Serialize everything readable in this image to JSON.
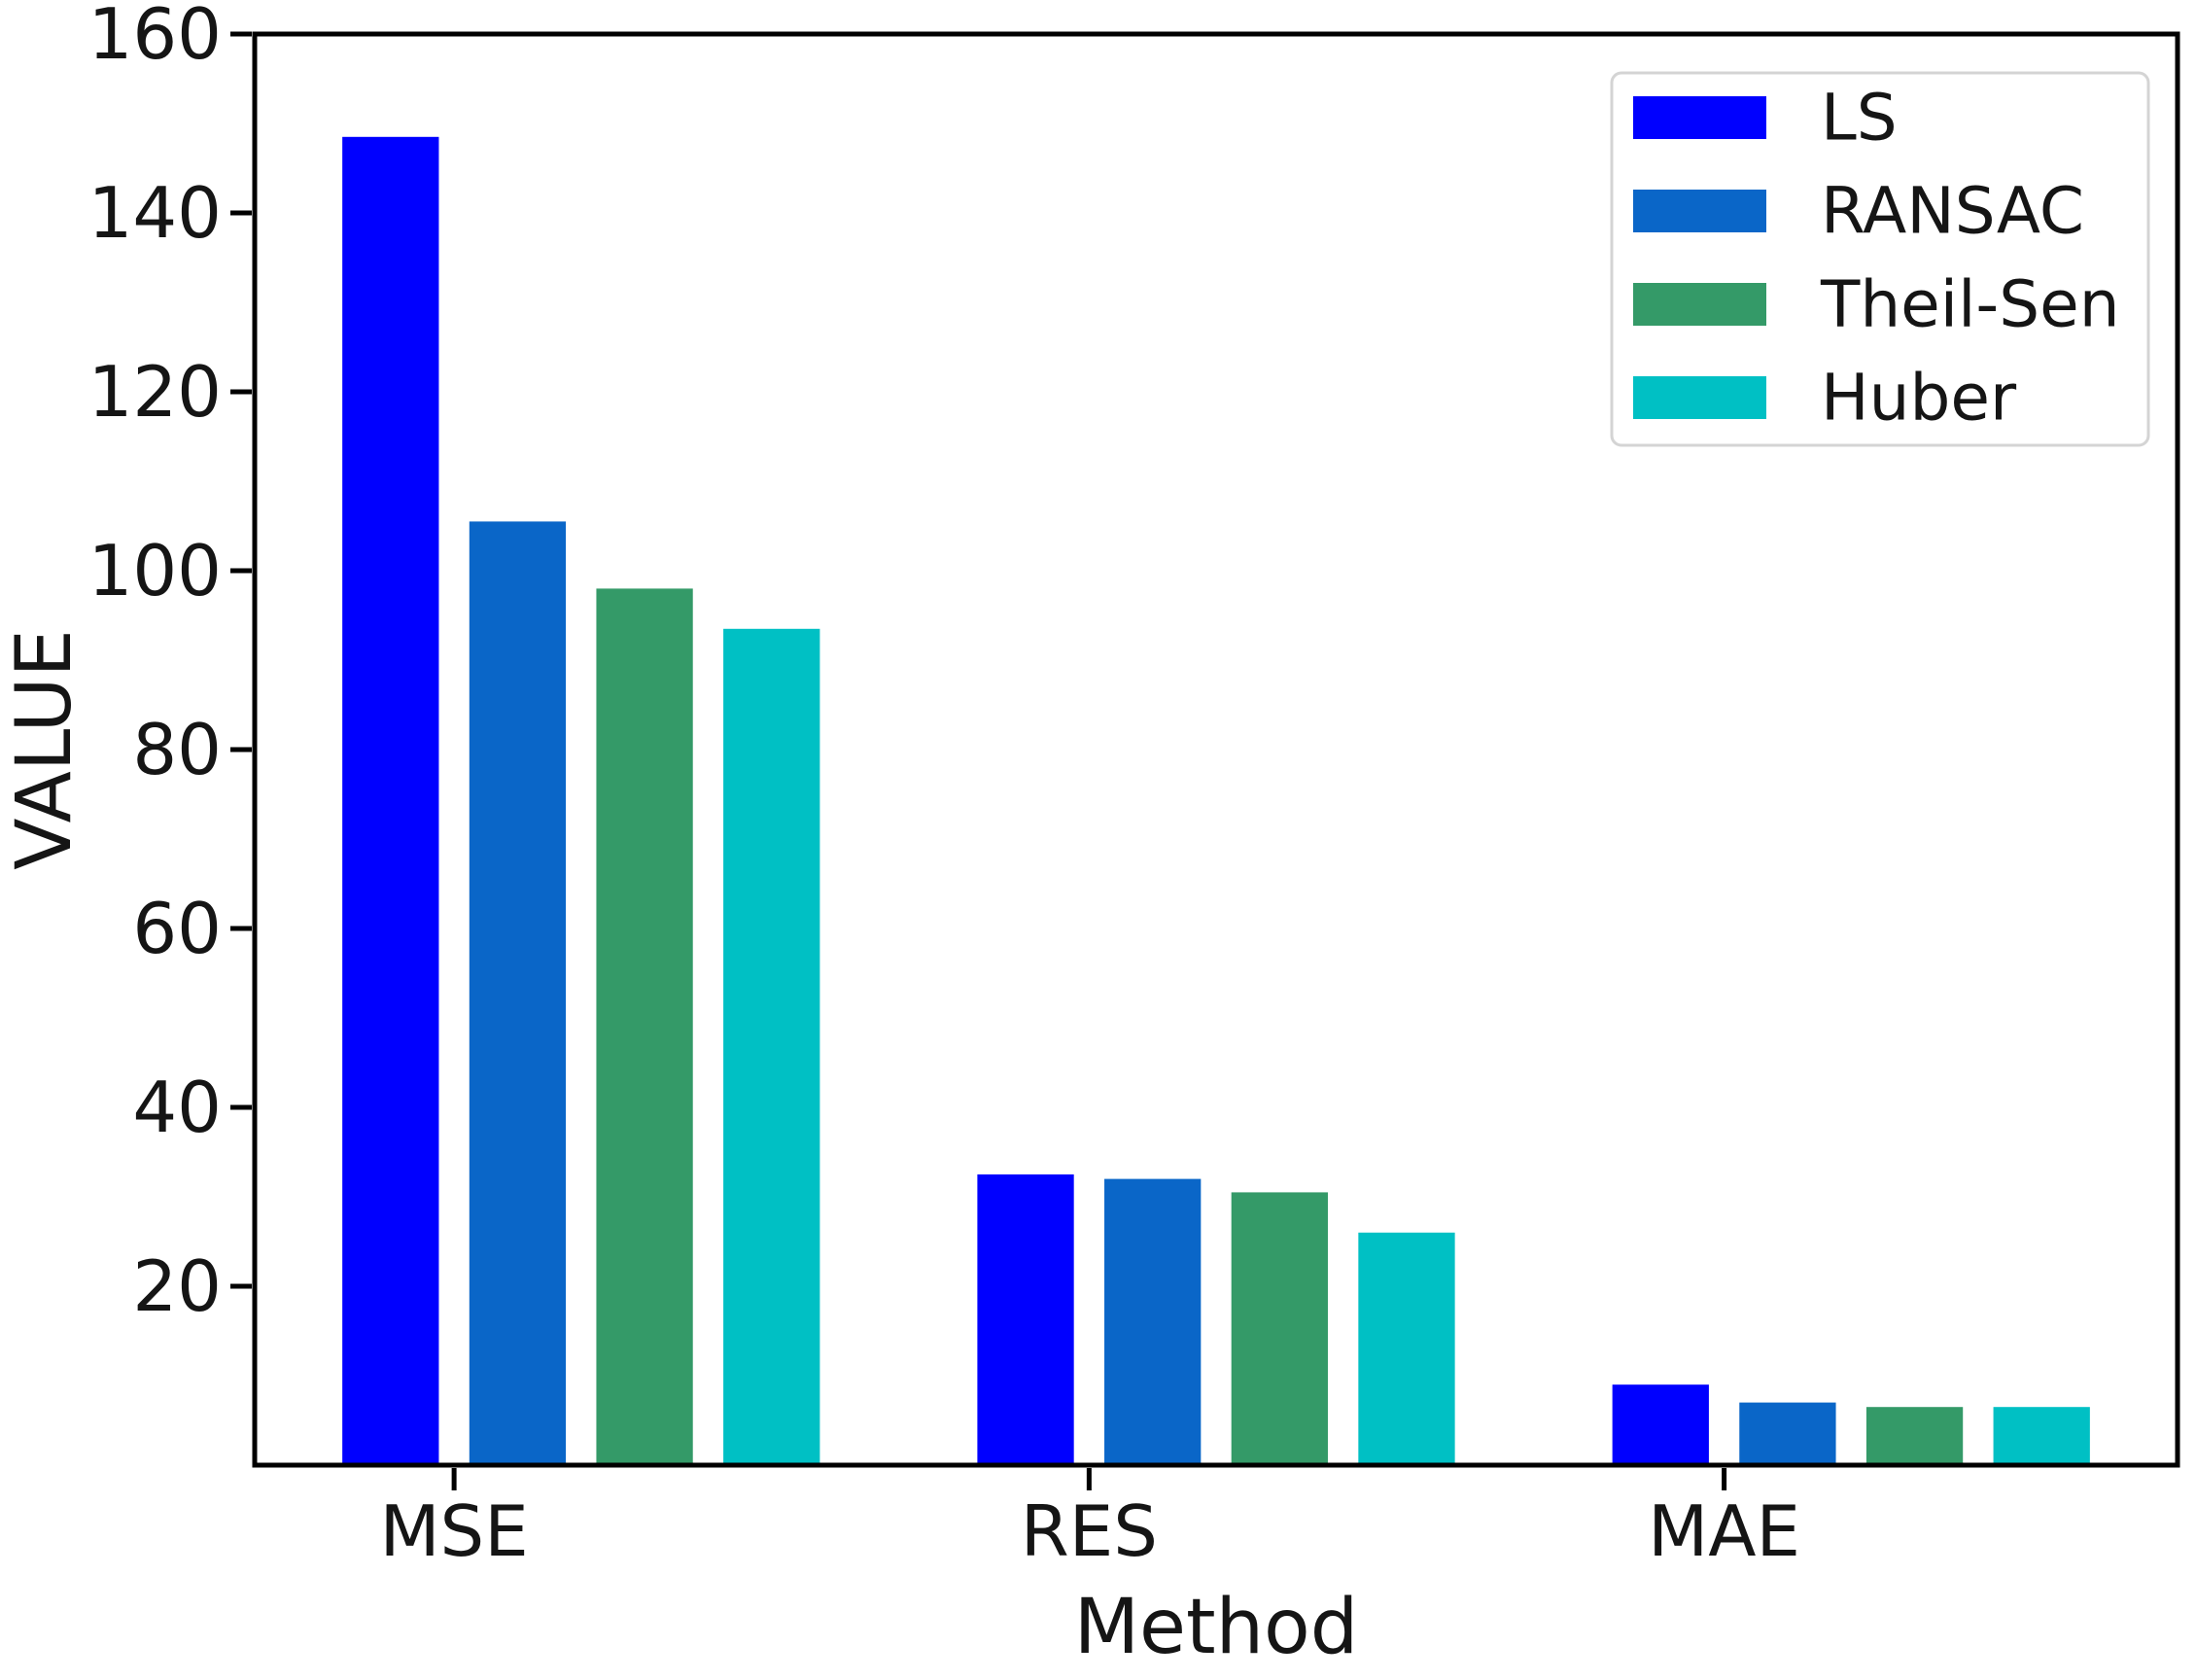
{
  "figure": {
    "background": "#ffffff"
  },
  "chart_data": {
    "type": "bar",
    "title": "",
    "xlabel": "Method",
    "ylabel": "VALUE",
    "categories": [
      "MSE",
      "RES",
      "MAE"
    ],
    "series": [
      {
        "name": "LS",
        "color": "#0000ff",
        "values": [
          148.5,
          32.5,
          9.0
        ]
      },
      {
        "name": "RANSAC",
        "color": "#0a66c8",
        "values": [
          105.5,
          32.0,
          7.0
        ]
      },
      {
        "name": "Theil-Sen",
        "color": "#349a68",
        "values": [
          98.0,
          30.5,
          6.5
        ]
      },
      {
        "name": "Huber",
        "color": "#00c0c4",
        "values": [
          93.5,
          26.0,
          6.5
        ]
      }
    ],
    "ylim": [
      0,
      160
    ],
    "xlim": [
      -0.314,
      2.714
    ],
    "yticks": [
      20,
      40,
      60,
      80,
      100,
      120,
      140,
      160
    ],
    "bar_offsets": [
      -0.1,
      0.1,
      0.3,
      0.5
    ],
    "bar_width": 0.152,
    "grid": false,
    "legend": {
      "position": "upper right",
      "entries": [
        "LS",
        "RANSAC",
        "Theil-Sen",
        "Huber"
      ]
    },
    "axis_color": "#000000",
    "text_color": "#151515"
  }
}
